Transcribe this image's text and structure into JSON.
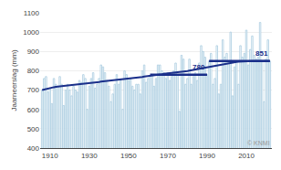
{
  "chart_data": {
    "type": "bar",
    "title": "",
    "ylabel": "Jaarneerslag (mm)",
    "x": [
      1906,
      1907,
      1908,
      1909,
      1910,
      1911,
      1912,
      1913,
      1914,
      1915,
      1916,
      1917,
      1918,
      1919,
      1920,
      1921,
      1922,
      1923,
      1924,
      1925,
      1926,
      1927,
      1928,
      1929,
      1930,
      1931,
      1932,
      1933,
      1934,
      1935,
      1936,
      1937,
      1938,
      1939,
      1940,
      1941,
      1942,
      1943,
      1944,
      1945,
      1946,
      1947,
      1948,
      1949,
      1950,
      1951,
      1952,
      1953,
      1954,
      1955,
      1956,
      1957,
      1958,
      1959,
      1960,
      1961,
      1962,
      1963,
      1964,
      1965,
      1966,
      1967,
      1968,
      1969,
      1970,
      1971,
      1972,
      1973,
      1974,
      1975,
      1976,
      1977,
      1978,
      1979,
      1980,
      1981,
      1982,
      1983,
      1984,
      1985,
      1986,
      1987,
      1988,
      1989,
      1990,
      1991,
      1992,
      1993,
      1994,
      1995,
      1996,
      1997,
      1998,
      1999,
      2000,
      2001,
      2002,
      2003,
      2004,
      2005,
      2006,
      2007,
      2008,
      2009,
      2010,
      2011,
      2012,
      2013,
      2014,
      2015,
      2016,
      2017,
      2018,
      2019,
      2020,
      2021,
      2022
    ],
    "series": [
      {
        "type": "bar",
        "color": "#a8cce0",
        "values": [
          700,
          760,
          770,
          690,
          710,
          630,
          760,
          730,
          720,
          770,
          730,
          620,
          700,
          730,
          700,
          670,
          720,
          700,
          690,
          750,
          740,
          780,
          760,
          600,
          720,
          760,
          790,
          710,
          730,
          760,
          830,
          820,
          790,
          750,
          720,
          640,
          680,
          730,
          780,
          730,
          750,
          600,
          800,
          780,
          750,
          760,
          720,
          700,
          730,
          730,
          680,
          800,
          830,
          740,
          760,
          770,
          780,
          720,
          760,
          830,
          830,
          800,
          790,
          760,
          790,
          750,
          770,
          800,
          840,
          780,
          590,
          880,
          860,
          730,
          760,
          860,
          730,
          770,
          790,
          750,
          840,
          930,
          900,
          870,
          780,
          850,
          890,
          730,
          760,
          930,
          680,
          730,
          960,
          870,
          890,
          840,
          1000,
          670,
          820,
          850,
          730,
          930,
          870,
          890,
          1010,
          830,
          910,
          980,
          880,
          860,
          870,
          1050,
          850,
          640,
          860,
          960,
          850
        ]
      },
      {
        "type": "line",
        "color": "#1a2f8a",
        "values": [
          700,
          703,
          706,
          709,
          712,
          713,
          715,
          717,
          719,
          720,
          721,
          722,
          723,
          724,
          725,
          725,
          726,
          727,
          728,
          729,
          731,
          732,
          734,
          735,
          736,
          737,
          739,
          740,
          741,
          742,
          744,
          745,
          747,
          748,
          749,
          750,
          751,
          752,
          753,
          754,
          756,
          757,
          759,
          760,
          761,
          762,
          763,
          764,
          765,
          766,
          767,
          768,
          770,
          771,
          772,
          773,
          775,
          776,
          778,
          779,
          781,
          782,
          784,
          785,
          786,
          787,
          788,
          789,
          790,
          791,
          792,
          794,
          796,
          797,
          799,
          801,
          803,
          805,
          807,
          808,
          810,
          812,
          815,
          817,
          819,
          821,
          823,
          825,
          827,
          829,
          831,
          833,
          835,
          837,
          839,
          840,
          842,
          843,
          845,
          846,
          847,
          848,
          849,
          850,
          851,
          851,
          851,
          851,
          851,
          851,
          851,
          851,
          851,
          851,
          851,
          851,
          851
        ]
      }
    ],
    "reference_lines": [
      {
        "value": 780,
        "x_start": 1961,
        "x_end": 1990,
        "color": "#1a2f8a"
      },
      {
        "value": 851,
        "x_start": 1991,
        "x_end": 2022,
        "color": "#1a2f8a"
      }
    ],
    "annotations": [
      "© KNMI"
    ],
    "xlim": [
      1905,
      2023
    ],
    "xticks": [
      1910,
      1930,
      1950,
      1970,
      1990,
      2010
    ],
    "ylim": [
      400,
      1100
    ],
    "yticks": [
      400,
      500,
      600,
      700,
      800,
      900,
      1000,
      1100
    ],
    "grid": true
  }
}
